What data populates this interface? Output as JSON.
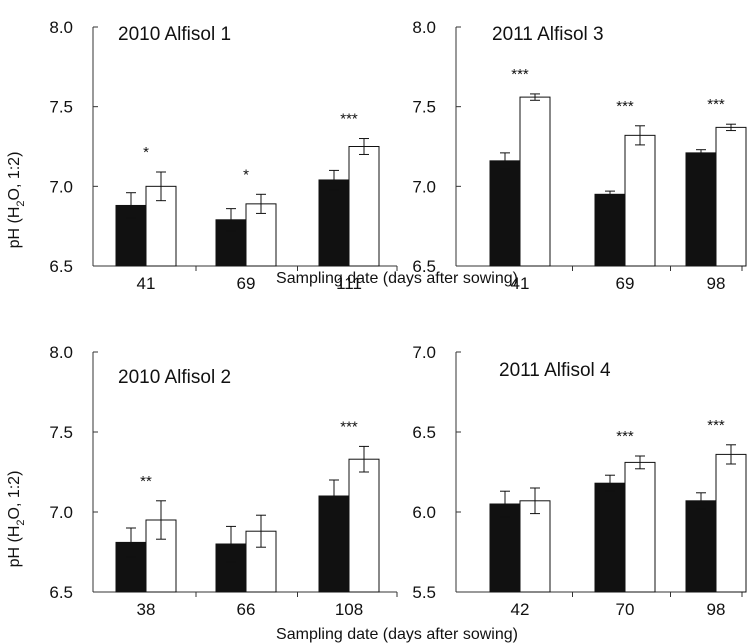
{
  "xlabel": "Sampling date (days after sowing)",
  "ylabel_parts": {
    "pre": "pH (H",
    "sub": "2",
    "post": "O, 1:2)"
  },
  "chart_data": [
    {
      "type": "bar",
      "title": "2010 Alfisol 1",
      "categories": [
        "41",
        "69",
        "111"
      ],
      "ylim": [
        6.5,
        8.0
      ],
      "yticks": [
        "6.5",
        "7.0",
        "7.5",
        "8.0"
      ],
      "series": [
        {
          "fill": "#111111",
          "values": [
            6.88,
            6.79,
            7.04
          ],
          "errors": [
            0.08,
            0.07,
            0.06
          ]
        },
        {
          "fill": "#ffffff",
          "values": [
            7.0,
            6.89,
            7.25
          ],
          "errors": [
            0.09,
            0.06,
            0.05
          ]
        }
      ],
      "significance": [
        "*",
        "*",
        "***"
      ]
    },
    {
      "type": "bar",
      "title": "2011 Alfisol 3",
      "categories": [
        "41",
        "69",
        "98"
      ],
      "ylim": [
        6.5,
        8.0
      ],
      "yticks": [
        "6.5",
        "7.0",
        "7.5",
        "8.0"
      ],
      "series": [
        {
          "fill": "#111111",
          "values": [
            7.16,
            6.95,
            7.21
          ],
          "errors": [
            0.05,
            0.02,
            0.02
          ]
        },
        {
          "fill": "#ffffff",
          "values": [
            7.56,
            7.32,
            7.37
          ],
          "errors": [
            0.02,
            0.06,
            0.02
          ]
        }
      ],
      "significance": [
        "***",
        "***",
        "***"
      ]
    },
    {
      "type": "bar",
      "title": "2010  Alfisol 2",
      "categories": [
        "38",
        "66",
        "108"
      ],
      "ylim": [
        6.5,
        8.0
      ],
      "yticks": [
        "6.5",
        "7.0",
        "7.5",
        "8.0"
      ],
      "series": [
        {
          "fill": "#111111",
          "values": [
            6.81,
            6.8,
            7.1
          ],
          "errors": [
            0.09,
            0.11,
            0.1
          ]
        },
        {
          "fill": "#ffffff",
          "values": [
            6.95,
            6.88,
            7.33
          ],
          "errors": [
            0.12,
            0.1,
            0.08
          ]
        }
      ],
      "significance": [
        "**",
        "",
        "***"
      ]
    },
    {
      "type": "bar",
      "title": "2011 Alfisol 4",
      "categories": [
        "42",
        "70",
        "98"
      ],
      "ylim": [
        5.5,
        7.0
      ],
      "yticks": [
        "5.5",
        "6.0",
        "6.5",
        "7.0"
      ],
      "series": [
        {
          "fill": "#111111",
          "values": [
            6.05,
            6.18,
            6.07
          ],
          "errors": [
            0.08,
            0.05,
            0.05
          ]
        },
        {
          "fill": "#ffffff",
          "values": [
            6.07,
            6.31,
            6.36
          ],
          "errors": [
            0.08,
            0.04,
            0.06
          ]
        }
      ],
      "significance": [
        "",
        "***",
        "***"
      ]
    }
  ]
}
